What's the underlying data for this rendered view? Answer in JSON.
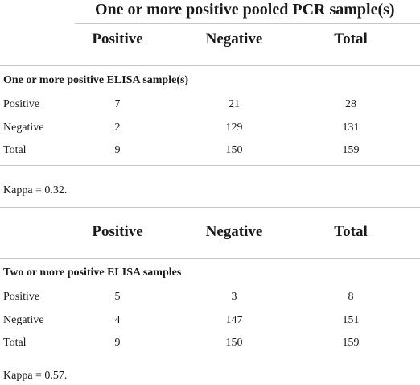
{
  "title": "One or more positive pooled PCR sample(s)",
  "table1": {
    "columns": [
      "Positive",
      "Negative",
      "Total"
    ],
    "section_label": "One or more positive ELISA sample(s)",
    "rows": [
      {
        "label": "Positive",
        "values": [
          "7",
          "21",
          "28"
        ]
      },
      {
        "label": "Negative",
        "values": [
          "2",
          "129",
          "131"
        ]
      },
      {
        "label": "Total",
        "values": [
          "9",
          "150",
          "159"
        ]
      }
    ],
    "kappa": "Kappa = 0.32."
  },
  "table2": {
    "columns": [
      "Positive",
      "Negative",
      "Total"
    ],
    "section_label": "Two or more positive ELISA samples",
    "rows": [
      {
        "label": "Positive",
        "values": [
          "5",
          "3",
          "8"
        ]
      },
      {
        "label": "Negative",
        "values": [
          "4",
          "147",
          "151"
        ]
      },
      {
        "label": "Total",
        "values": [
          "9",
          "150",
          "159"
        ]
      }
    ],
    "kappa": "Kappa = 0.57."
  }
}
